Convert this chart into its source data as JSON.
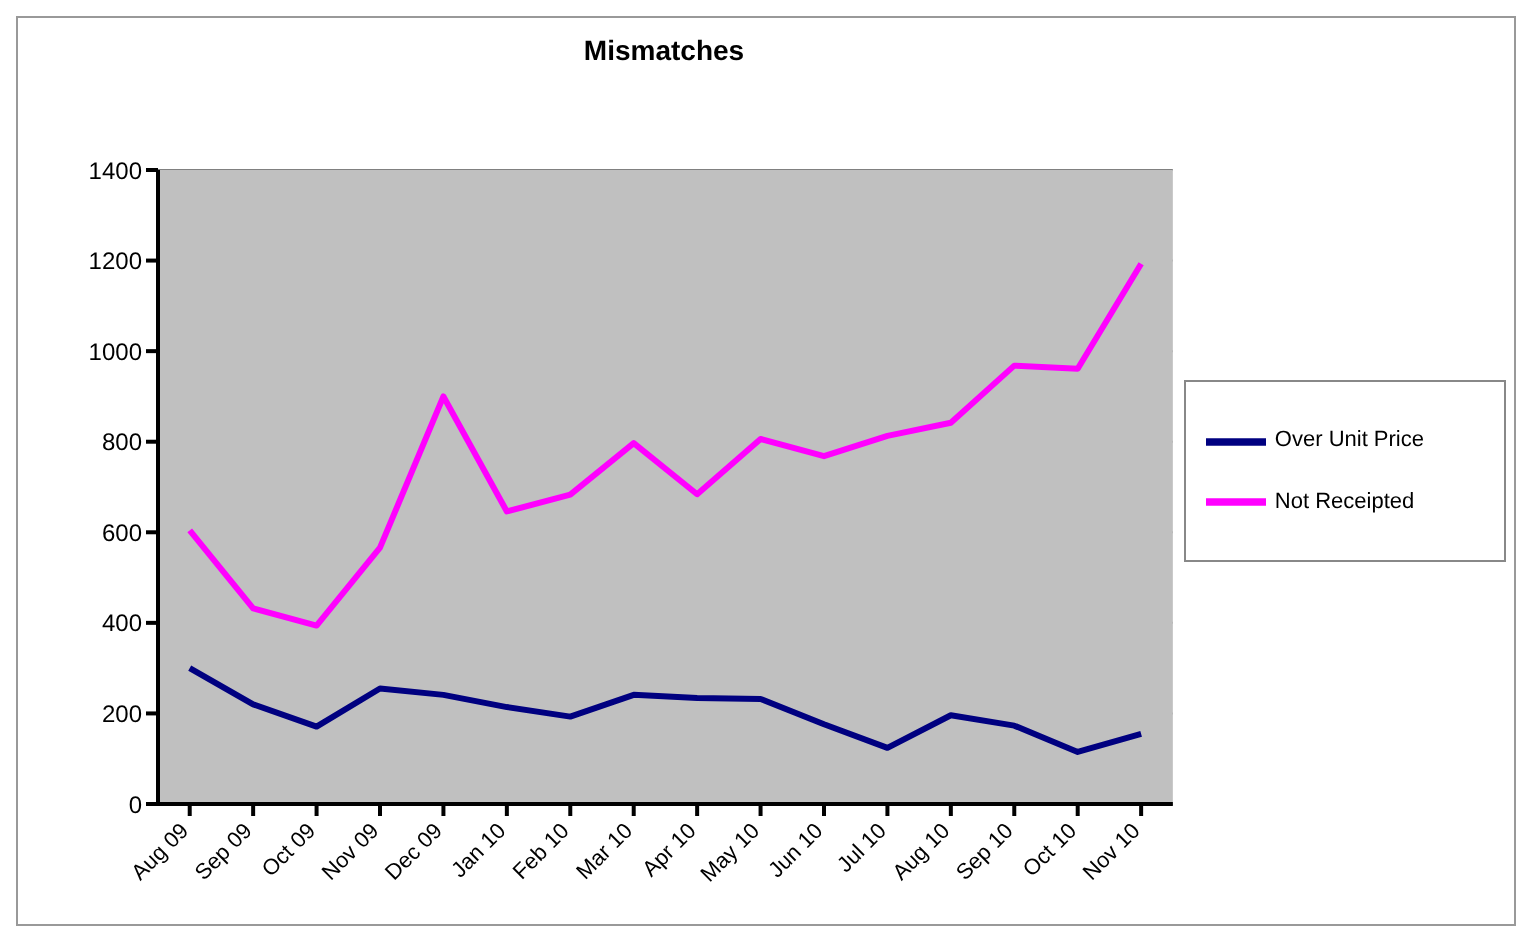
{
  "chart_data": {
    "type": "line",
    "title": "Mismatches",
    "categories": [
      "Aug 09",
      "Sep 09",
      "Oct 09",
      "Nov 09",
      "Dec 09",
      "Jan 10",
      "Feb 10",
      "Mar 10",
      "Apr 10",
      "May 10",
      "Jun 10",
      "Jul 10",
      "Aug 10",
      "Sep 10",
      "Oct 10",
      "Nov 10"
    ],
    "series": [
      {
        "name": "Over Unit Price",
        "color": "#000080",
        "values": [
          300,
          220,
          171,
          255,
          241,
          214,
          193,
          241,
          234,
          232,
          176,
          124,
          196,
          173,
          115,
          155
        ]
      },
      {
        "name": "Not Receipted",
        "color": "#ff00ff",
        "values": [
          604,
          432,
          394,
          566,
          900,
          646,
          683,
          797,
          684,
          806,
          768,
          813,
          842,
          968,
          961,
          1193
        ]
      }
    ],
    "ylim": [
      0,
      1400
    ],
    "yticks": [
      0,
      200,
      400,
      600,
      800,
      1000,
      1200,
      1400
    ],
    "grid": "y",
    "legend": "right",
    "marker": "none",
    "line_style": "solid"
  }
}
